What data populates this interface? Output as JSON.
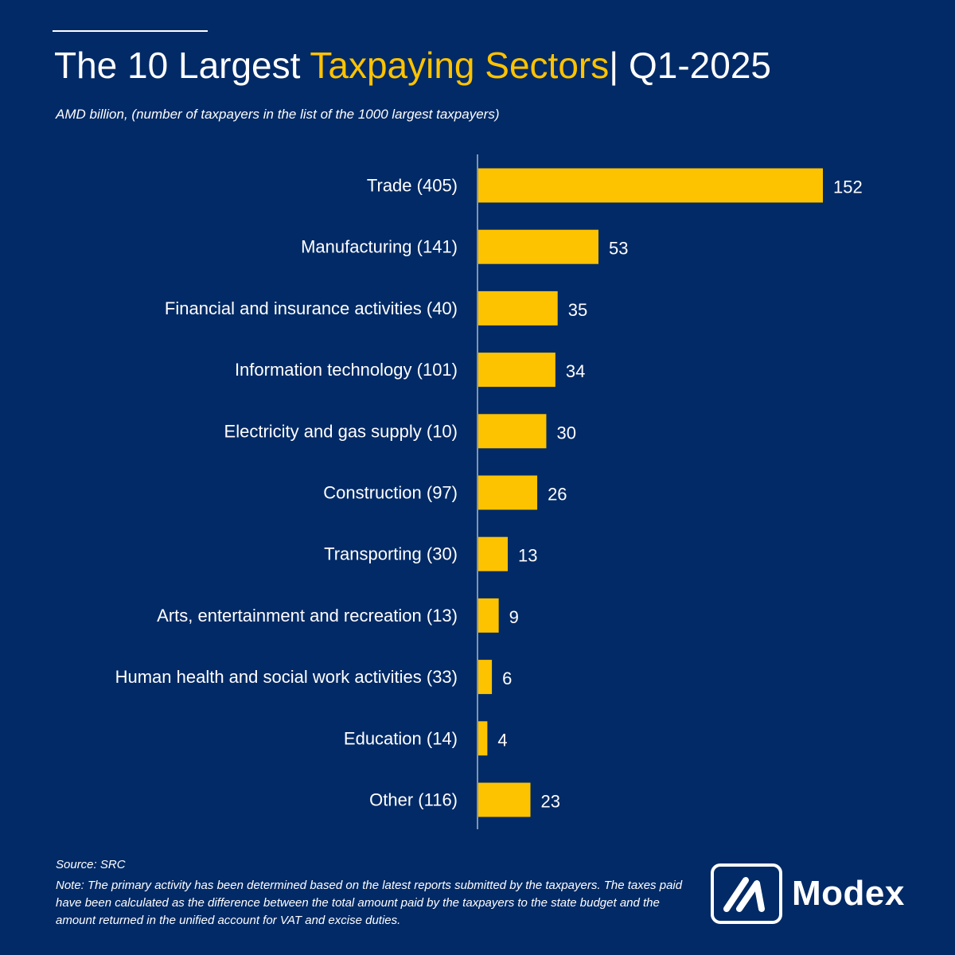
{
  "header": {
    "title_part1": "The 10 Largest ",
    "title_accent": "Taxpaying Sectors",
    "title_part2": "| Q1-2025",
    "subtitle": "AMD billion, (number of taxpayers in the list of the 1000 largest taxpayers)"
  },
  "footer": {
    "source": "Source: SRC",
    "note": "Note: The primary activity has been determined based on the latest reports submitted by the taxpayers. The taxes paid have been calculated as the difference between the total amount paid by the taxpayers to the state budget and the amount returned in the unified account for VAT and excise duties."
  },
  "brand": {
    "name": "Modex",
    "icon": "modex-logo-icon"
  },
  "colors": {
    "background": "#022a66",
    "bar": "#fec300",
    "accent": "#fec300",
    "text": "#ffffff"
  },
  "chart_data": {
    "type": "bar",
    "orientation": "horizontal",
    "title": "The 10 Largest Taxpaying Sectors| Q1-2025",
    "subtitle": "AMD billion, (number of taxpayers in the list of the 1000 largest taxpayers)",
    "categories": [
      "Trade (405)",
      "Manufacturing  (141)",
      "Financial and insurance activities (40)",
      "Information technology (101)",
      "Electricity and gas supply (10)",
      "Construction  (97)",
      "Transporting (30)",
      "Arts, entertainment and recreation (13)",
      "Human health and social work activities  (33)",
      "Education (14)",
      "Other (116)"
    ],
    "values": [
      152,
      53,
      35,
      34,
      30,
      26,
      13,
      9,
      6,
      4,
      23
    ],
    "data_labels": [
      "152",
      "53",
      "35",
      "34",
      "30",
      "26",
      "13",
      "9",
      "6",
      "4",
      "23"
    ],
    "xlim": [
      0,
      152
    ],
    "grid": false,
    "legend": "none"
  }
}
